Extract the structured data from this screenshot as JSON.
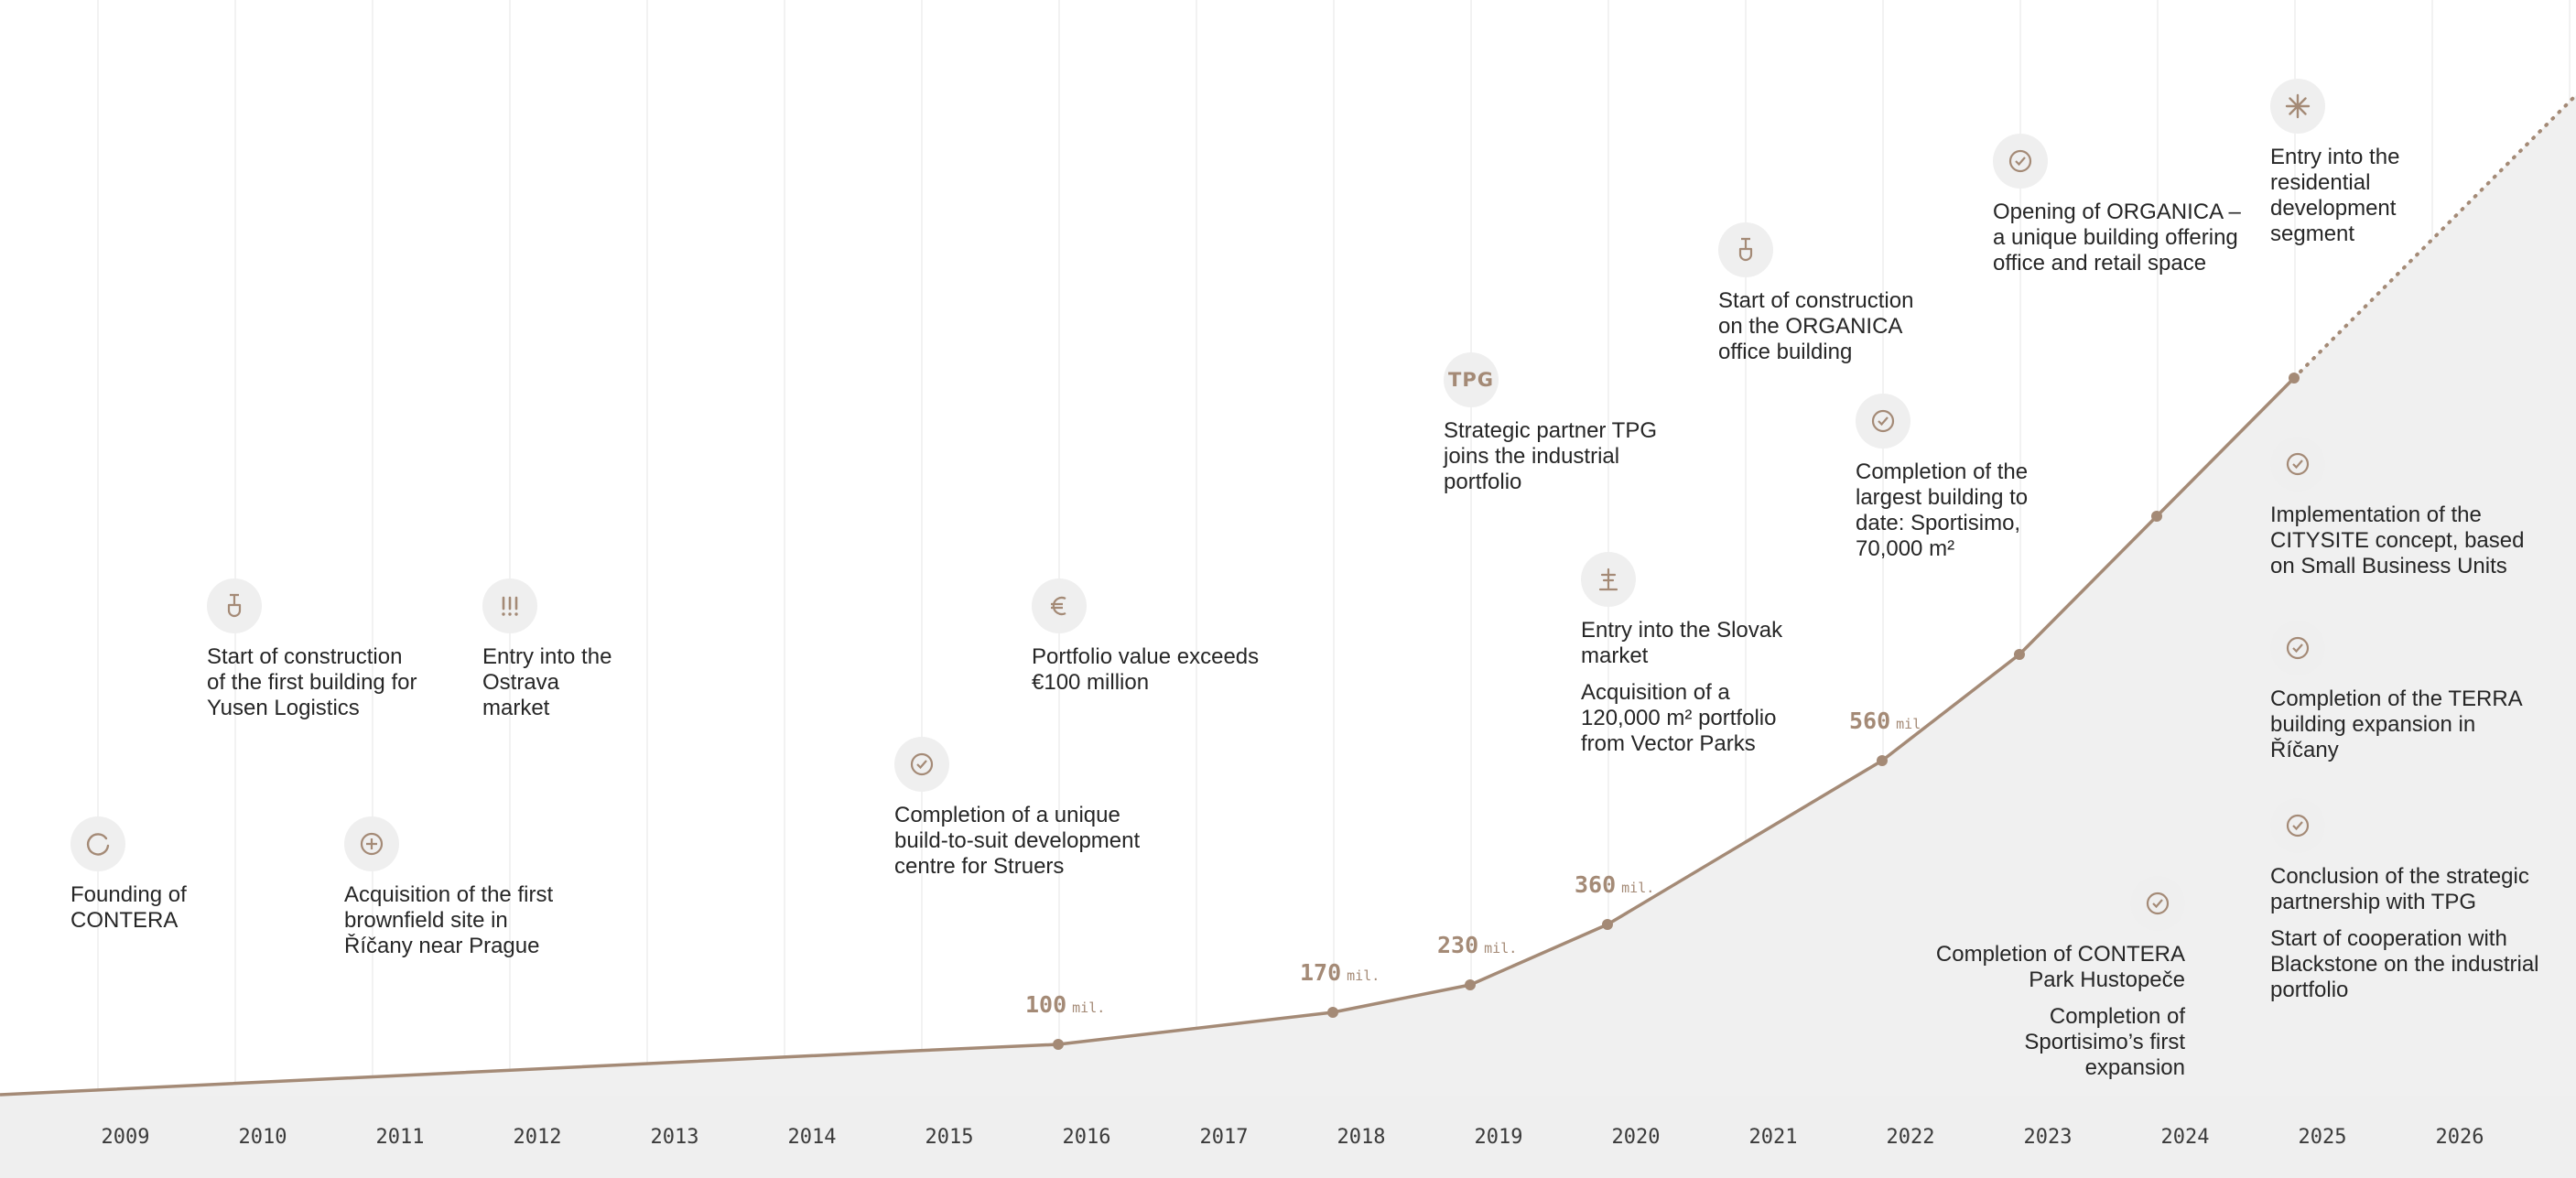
{
  "chart_data": {
    "type": "area",
    "title": "",
    "xlabel": "",
    "ylabel": "",
    "x_categories": [
      "2009",
      "2010",
      "2011",
      "2012",
      "2013",
      "2014",
      "2015",
      "2016",
      "2017",
      "2018",
      "2019",
      "2020",
      "2021",
      "2022",
      "2023",
      "2024",
      "2025",
      "2026"
    ],
    "series": [
      {
        "points": [
          {
            "x": "2016",
            "y": 100,
            "label_value": "100",
            "label_unit": "mil."
          },
          {
            "x": "2018",
            "y": 170,
            "label_value": "170",
            "label_unit": "mil."
          },
          {
            "x": "2019",
            "y": 230,
            "label_value": "230",
            "label_unit": "mil."
          },
          {
            "x": "2020",
            "y": 360,
            "label_value": "360",
            "label_unit": "mil."
          },
          {
            "x": "2022",
            "y": 560,
            "label_value": "560",
            "label_unit": "mil."
          },
          {
            "x": "2023"
          },
          {
            "x": "2024"
          },
          {
            "x": "2025"
          }
        ],
        "projection_after": "2025"
      }
    ],
    "grid": true,
    "legend": "none"
  },
  "colors": {
    "accent": "#a48a76",
    "area_fill": "#f0f0f0",
    "axis_band": "#efefef",
    "grid": "#ececec",
    "text": "#262626",
    "icon_bg": "#efefef"
  },
  "events": [
    {
      "id": "founding",
      "year": "2009",
      "icon": "circle-arrow-icon",
      "texts": [
        "Founding of CONTERA"
      ]
    },
    {
      "id": "yusen",
      "year": "2010",
      "icon": "shovel-icon",
      "texts": [
        "Start of construction of the first building for Yusen Logistics"
      ]
    },
    {
      "id": "brownfield",
      "year": "2011",
      "icon": "plus-circle-icon",
      "texts": [
        "Acquisition of the first brownfield site in Říčany near Prague"
      ]
    },
    {
      "id": "ostrava",
      "year": "2012",
      "icon": "exclamation-icon",
      "texts": [
        "Entry into the Ostrava market"
      ]
    },
    {
      "id": "struers",
      "year": "2015",
      "icon": "check-circle-icon",
      "texts": [
        "Completion of a unique build-to-suit development centre for Struers"
      ]
    },
    {
      "id": "portfolio-value",
      "year": "2016",
      "icon": "euro-icon",
      "texts": [
        "Portfolio value exceeds €100 million"
      ]
    },
    {
      "id": "tpg-partner",
      "year": "2019",
      "icon": "tpg-text-icon",
      "icon_text": "TPG",
      "texts": [
        "Strategic partner TPG joins the industrial portfolio"
      ]
    },
    {
      "id": "slovak",
      "year": "2020",
      "icon": "tower-icon",
      "texts": [
        "Entry into the Slovak market",
        "Acquisition of a 120,000 m² portfolio from Vector Parks"
      ]
    },
    {
      "id": "organica-start",
      "year": "2021",
      "icon": "shovel-icon",
      "texts": [
        "Start of construction on the ORGANICA office building"
      ]
    },
    {
      "id": "sportisimo",
      "year": "2022",
      "icon": "check-circle-icon",
      "texts": [
        "Completion of the largest building to date: Sportisimo, 70,000 m²"
      ]
    },
    {
      "id": "organica-open",
      "year": "2023",
      "icon": "check-circle-icon",
      "texts": [
        "Opening of ORGANICA – a unique building offering office and retail space"
      ]
    },
    {
      "id": "hustopece",
      "year": "2024",
      "icon": "check-circle-icon",
      "texts": [
        "Completion of CONTERA Park Hustopeče",
        "Completion of Sportisimo’s first expansion"
      ]
    },
    {
      "id": "residential",
      "year": "2025",
      "icon": "asterisk-icon",
      "texts": [
        "Entry into the residential development segment"
      ]
    },
    {
      "id": "citysite",
      "year": "2025",
      "icon": "check-circle-icon",
      "texts": [
        "Implementation of the CITYSITE concept, based on Small Business Units"
      ]
    },
    {
      "id": "terra",
      "year": "2025",
      "icon": "check-circle-icon",
      "texts": [
        "Completion of the TERRA building expansion in Říčany"
      ]
    },
    {
      "id": "tpg-conclusion",
      "year": "2025",
      "icon": "check-circle-icon",
      "texts": [
        "Conclusion of the strategic partnership with TPG",
        "Start of cooperation with Blackstone on the industrial portfolio"
      ]
    }
  ]
}
